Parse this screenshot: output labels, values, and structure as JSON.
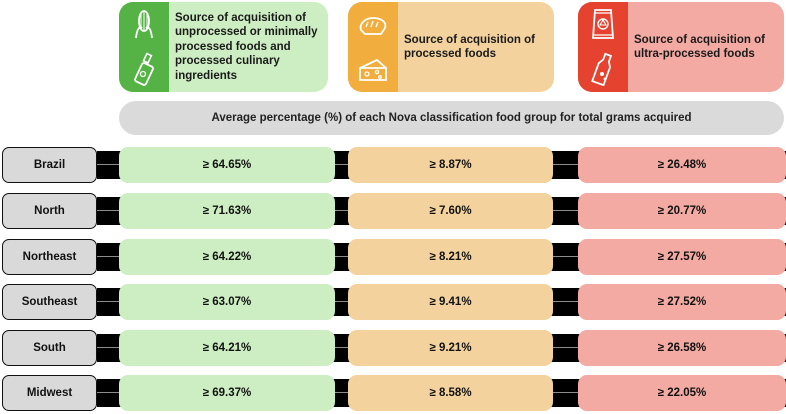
{
  "headers": {
    "unprocessed": "Source of acquisition of unprocessed or minimally processed foods and processed culinary ingredients",
    "processed": "Source of acquisition of processed foods",
    "ultra": "Source of acquisition of ultra-processed foods"
  },
  "icons": {
    "unprocessed": [
      "corn-icon",
      "oil-bottle-icon"
    ],
    "processed": [
      "bread-icon",
      "cheese-icon"
    ],
    "ultra": [
      "chips-bag-icon",
      "soda-bottle-icon"
    ]
  },
  "average_label": "Average percentage (%) of each Nova classification food group for total grams acquired",
  "rows": [
    {
      "region": "Brazil",
      "unprocessed": "≥ 64.65%",
      "processed": "≥ 8.87%",
      "ultra": "≥ 26.48%"
    },
    {
      "region": "North",
      "unprocessed": "≥ 71.63%",
      "processed": "≥ 7.60%",
      "ultra": "≥ 20.77%"
    },
    {
      "region": "Northeast",
      "unprocessed": "≥ 64.22%",
      "processed": "≥ 8.21%",
      "ultra": "≥ 27.57%"
    },
    {
      "region": "Southeast",
      "unprocessed": "≥ 63.07%",
      "processed": "≥ 9.41%",
      "ultra": "≥ 27.52%"
    },
    {
      "region": "South",
      "unprocessed": "≥ 64.21%",
      "processed": "≥ 9.21%",
      "ultra": "≥ 26.58%"
    },
    {
      "region": "Midwest",
      "unprocessed": "≥ 69.37%",
      "processed": "≥ 8.58%",
      "ultra": "≥ 22.05%"
    }
  ],
  "colors": {
    "unprocessed_icon": "#54b344",
    "unprocessed_bg": "#cdeec2",
    "processed_icon": "#f1ae3f",
    "processed_bg": "#f3d29d",
    "ultra_icon": "#e5432f",
    "ultra_bg": "#f3aaa3",
    "region_bg": "#d9d9d9",
    "band": "#000000"
  }
}
